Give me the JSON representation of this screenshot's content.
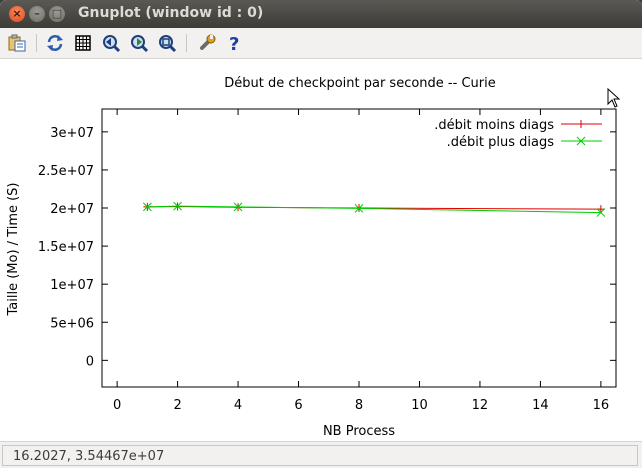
{
  "window": {
    "title": "Gnuplot (window id : 0)",
    "close_glyph": "×",
    "min_glyph": "–",
    "max_glyph": "□"
  },
  "toolbar": {
    "items": [
      {
        "name": "copy-clipboard-icon"
      },
      {
        "name": "replot-icon"
      },
      {
        "name": "grid-icon"
      },
      {
        "name": "previous-zoom-icon"
      },
      {
        "name": "next-zoom-icon"
      },
      {
        "name": "autoscale-icon"
      },
      {
        "name": "settings-wrench-icon"
      },
      {
        "name": "help-icon"
      }
    ]
  },
  "statusbar": {
    "coords": "16.2027,  3.54467e+07"
  },
  "chart_data": {
    "type": "line",
    "title": "Début de checkpoint par seconde -- Curie",
    "xlabel": "NB Process",
    "ylabel": "Taille (Mo) / Time (S)",
    "xlim": [
      -0.5,
      16.5
    ],
    "ylim": [
      -3500000,
      33000000
    ],
    "xticks": [
      0,
      2,
      4,
      6,
      8,
      10,
      12,
      14,
      16
    ],
    "xtick_labels": [
      "0",
      "2",
      "4",
      "6",
      "8",
      "10",
      "12",
      "14",
      "16"
    ],
    "yticks": [
      0,
      5000000,
      10000000,
      15000000,
      20000000,
      25000000,
      30000000
    ],
    "ytick_labels": [
      "0",
      "5e+06",
      "1e+07",
      "1.5e+07",
      "2e+07",
      "2.5e+07",
      "3e+07"
    ],
    "grid": false,
    "legend": "top-right",
    "series": [
      {
        "name": ".débit moins diags",
        "color": "#e00000",
        "marker": "+",
        "x": [
          1,
          2,
          4,
          8,
          16
        ],
        "y": [
          20150000,
          20200000,
          20100000,
          20000000,
          19850000
        ]
      },
      {
        "name": ".débit plus diags",
        "color": "#00cc00",
        "marker": "x",
        "x": [
          1,
          2,
          4,
          8,
          16
        ],
        "y": [
          20150000,
          20250000,
          20150000,
          19950000,
          19400000
        ]
      }
    ]
  }
}
